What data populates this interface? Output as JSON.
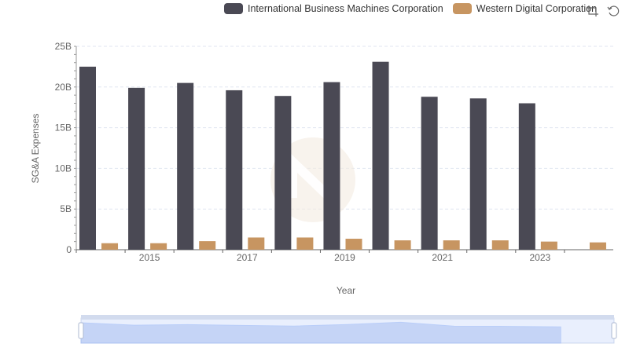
{
  "legend": {
    "ibm_label": "International Business Machines Corporation",
    "wd_label": "Western Digital Corporation"
  },
  "toolbox": {
    "icons": [
      "zoom-icon",
      "restore-icon"
    ]
  },
  "chart_data": {
    "type": "bar",
    "ylabel": "SG&A Expenses",
    "xlabel": "Year",
    "ylim": [
      0,
      25000000000
    ],
    "y_ticks": [
      "0",
      "5B",
      "10B",
      "15B",
      "20B",
      "25B"
    ],
    "x": [
      2014,
      2015,
      2016,
      2017,
      2018,
      2019,
      2020,
      2021,
      2022,
      2023,
      2024
    ],
    "x_tick_labels": [
      "2015",
      "2017",
      "2019",
      "2021",
      "2023"
    ],
    "series": [
      {
        "name": "International Business Machines Corporation",
        "color": "#4a4954",
        "values": [
          22500000000,
          19900000000,
          20500000000,
          19600000000,
          18900000000,
          20600000000,
          23100000000,
          18800000000,
          18600000000,
          18000000000,
          null
        ]
      },
      {
        "name": "Western Digital Corporation",
        "color": "#c79561",
        "values": [
          800000000,
          800000000,
          1050000000,
          1500000000,
          1500000000,
          1350000000,
          1150000000,
          1150000000,
          1150000000,
          1000000000,
          900000000
        ]
      }
    ],
    "grid": true,
    "legend_position": "top-right",
    "data_zoom": true
  }
}
